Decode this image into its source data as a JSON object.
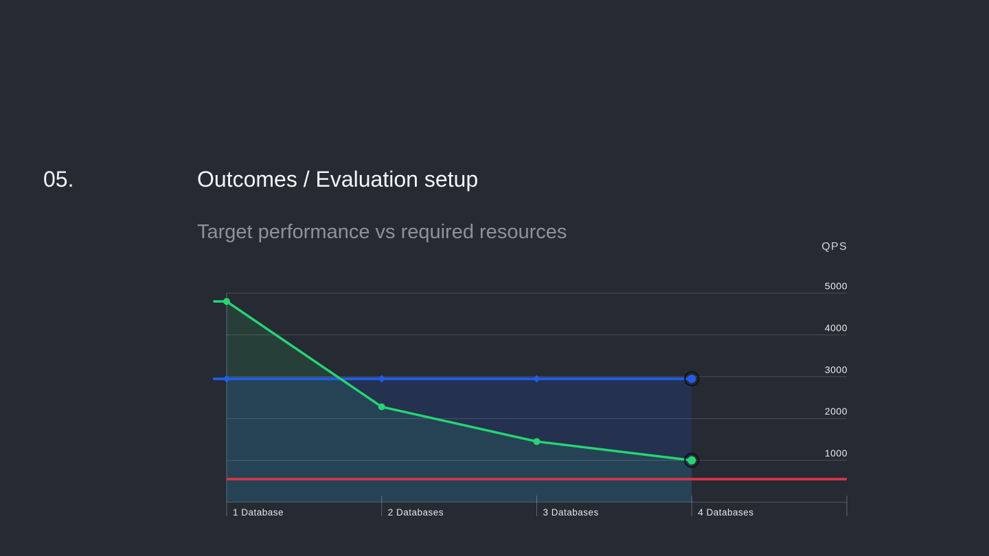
{
  "slide": {
    "index_label": "05.",
    "title": "Outcomes / Evaluation setup",
    "subtitle": "Target performance vs required resources"
  },
  "chart_data": {
    "type": "line",
    "title": "Target performance vs required resources",
    "unit_label": "QPS",
    "categories": [
      "1 Database",
      "2 Databases",
      "3 Databases",
      "4 Databases"
    ],
    "series": [
      {
        "id": "green-series",
        "color": "#24d573",
        "marker": "circle",
        "area_fill": true,
        "fill_color": "rgba(43,211,111,0.13)",
        "last_point_ring": true,
        "values": [
          4800,
          2280,
          1450,
          1000
        ]
      },
      {
        "id": "blue-series",
        "color": "#215ceb",
        "marker": "diamond",
        "area_fill": true,
        "fill_color": "rgba(33,96,235,0.16)",
        "last_point_ring": true,
        "values": [
          2950,
          2950,
          2950,
          2950
        ]
      },
      {
        "id": "red-series",
        "color": "#e03449",
        "marker": "none",
        "area_fill": false,
        "full_width": true,
        "values": [
          550,
          550,
          550,
          550
        ]
      }
    ],
    "ylim": [
      0,
      5000
    ],
    "yticks": [
      5000,
      4000,
      3000,
      2000,
      1000
    ],
    "ytick_side": "right",
    "grid": true,
    "legend": "none"
  },
  "colors": {
    "background": "#262a32",
    "title": "#f5f6f8",
    "subtitle": "#8c929c",
    "axis_text": "#e9ebee"
  }
}
